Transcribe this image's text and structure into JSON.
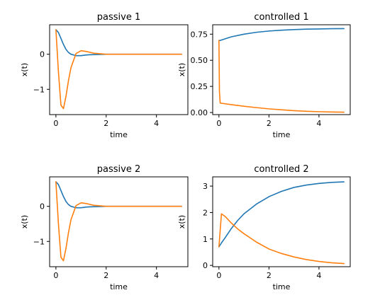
{
  "chart_data": [
    {
      "type": "line",
      "title": "passive 1",
      "xlabel": "time",
      "ylabel": "x(t)",
      "xlim": [
        -0.25,
        5.25
      ],
      "ylim": [
        -1.72,
        0.84
      ],
      "xticks": [
        0,
        2,
        4
      ],
      "yticks": [
        -1,
        0
      ],
      "yticklabels": [
        "−1",
        "0"
      ],
      "grid": false,
      "colors": [
        "#1f77b4",
        "#ff7f0e"
      ],
      "x": [
        0,
        0.1,
        0.2,
        0.3,
        0.4,
        0.5,
        0.6,
        0.8,
        1.0,
        1.2,
        1.5,
        2.0,
        2.5,
        3.0,
        4.0,
        5.0
      ],
      "series": [
        {
          "values": [
            0.7,
            0.62,
            0.45,
            0.28,
            0.14,
            0.05,
            0.0,
            -0.04,
            -0.04,
            -0.02,
            -0.01,
            0.0,
            0.0,
            0.0,
            0.0,
            0.0
          ]
        },
        {
          "values": [
            0.7,
            -0.5,
            -1.45,
            -1.55,
            -1.2,
            -0.75,
            -0.38,
            0.02,
            0.1,
            0.08,
            0.03,
            0.0,
            0.0,
            0.0,
            0.0,
            0.0
          ]
        }
      ]
    },
    {
      "type": "line",
      "title": "controlled 1",
      "xlabel": "time",
      "ylabel": "x(t)",
      "xlim": [
        -0.25,
        5.25
      ],
      "ylim": [
        -0.02,
        0.84
      ],
      "xticks": [
        0,
        2,
        4
      ],
      "yticks": [
        0.0,
        0.25,
        0.5,
        0.75
      ],
      "yticklabels": [
        "0.00",
        "0.25",
        "0.50",
        "0.75"
      ],
      "grid": false,
      "colors": [
        "#1f77b4",
        "#ff7f0e"
      ],
      "x": [
        0,
        0.02,
        0.05,
        0.5,
        1.0,
        1.5,
        2.0,
        2.5,
        3.0,
        3.5,
        4.0,
        4.5,
        5.0
      ],
      "series": [
        {
          "values": [
            0.69,
            0.69,
            0.69,
            0.725,
            0.75,
            0.768,
            0.78,
            0.788,
            0.794,
            0.798,
            0.8,
            0.802,
            0.803
          ]
        },
        {
          "values": [
            0.69,
            0.2,
            0.09,
            0.075,
            0.06,
            0.047,
            0.035,
            0.026,
            0.018,
            0.012,
            0.008,
            0.005,
            0.003
          ]
        }
      ]
    },
    {
      "type": "line",
      "title": "passive 2",
      "xlabel": "time",
      "ylabel": "x(t)",
      "xlim": [
        -0.25,
        5.25
      ],
      "ylim": [
        -1.72,
        0.84
      ],
      "xticks": [
        0,
        2,
        4
      ],
      "yticks": [
        -1,
        0
      ],
      "yticklabels": [
        "−1",
        "0"
      ],
      "grid": false,
      "colors": [
        "#1f77b4",
        "#ff7f0e"
      ],
      "x": [
        0,
        0.1,
        0.2,
        0.3,
        0.4,
        0.5,
        0.6,
        0.8,
        1.0,
        1.2,
        1.5,
        2.0,
        2.5,
        3.0,
        4.0,
        5.0
      ],
      "series": [
        {
          "values": [
            0.7,
            0.62,
            0.45,
            0.28,
            0.14,
            0.05,
            0.0,
            -0.04,
            -0.04,
            -0.02,
            -0.01,
            0.0,
            0.0,
            0.0,
            0.0,
            0.0
          ]
        },
        {
          "values": [
            0.7,
            -0.5,
            -1.45,
            -1.55,
            -1.2,
            -0.75,
            -0.38,
            0.02,
            0.1,
            0.08,
            0.03,
            0.0,
            0.0,
            0.0,
            0.0,
            0.0
          ]
        }
      ]
    },
    {
      "type": "line",
      "title": "controlled 2",
      "xlabel": "time",
      "ylabel": "x(t)",
      "xlim": [
        -0.25,
        5.25
      ],
      "ylim": [
        -0.05,
        3.35
      ],
      "xticks": [
        0,
        2,
        4
      ],
      "yticks": [
        0,
        1,
        2,
        3
      ],
      "yticklabels": [
        "0",
        "1",
        "2",
        "3"
      ],
      "grid": false,
      "colors": [
        "#1f77b4",
        "#ff7f0e"
      ],
      "x": [
        0,
        0.1,
        0.25,
        0.5,
        0.75,
        1.0,
        1.5,
        2.0,
        2.5,
        3.0,
        3.5,
        4.0,
        4.5,
        5.0
      ],
      "series": [
        {
          "values": [
            0.7,
            0.85,
            1.05,
            1.4,
            1.7,
            1.95,
            2.32,
            2.6,
            2.8,
            2.95,
            3.04,
            3.1,
            3.14,
            3.16
          ]
        },
        {
          "values": [
            0.7,
            1.95,
            1.85,
            1.6,
            1.38,
            1.2,
            0.88,
            0.62,
            0.45,
            0.32,
            0.22,
            0.15,
            0.1,
            0.07
          ]
        }
      ]
    }
  ]
}
